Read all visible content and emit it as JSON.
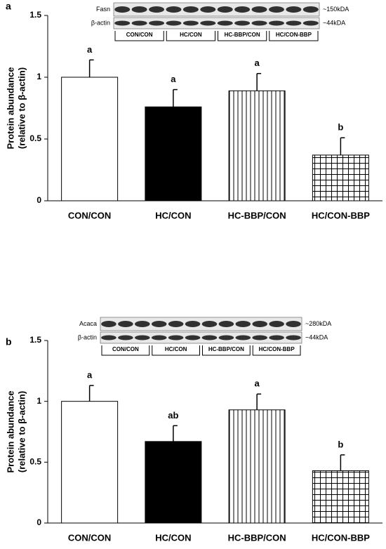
{
  "chart_data": [
    {
      "type": "bar",
      "panel": "a",
      "ylabel": [
        "Protein abundance",
        "(relative to β-actin)"
      ],
      "categories": [
        "CON/CON",
        "HC/CON",
        "HC-BBP/CON",
        "HC/CON-BBP"
      ],
      "values": [
        1.0,
        0.76,
        0.89,
        0.37
      ],
      "errors": [
        0.14,
        0.14,
        0.14,
        0.14
      ],
      "letters": [
        "a",
        "a",
        "a",
        "b"
      ],
      "fills": [
        "white",
        "black",
        "vertical",
        "grid"
      ],
      "ylim": [
        0,
        1.5
      ],
      "yticks": [
        0,
        0.5,
        1,
        1.5
      ],
      "blot": {
        "bands": [
          {
            "name": "Fasn",
            "size": "~150kDA"
          },
          {
            "name": "β-actin",
            "size": "~44kDA"
          }
        ],
        "groups": [
          "CON/CON",
          "HC/CON",
          "HC-BBP/CON",
          "HC/CON-BBP"
        ]
      }
    },
    {
      "type": "bar",
      "panel": "b",
      "ylabel": [
        "Protein abundance",
        "(relative to β-actin)"
      ],
      "categories": [
        "CON/CON",
        "HC/CON",
        "HC-BBP/CON",
        "HC/CON-BBP"
      ],
      "values": [
        1.0,
        0.67,
        0.93,
        0.43
      ],
      "errors": [
        0.13,
        0.13,
        0.13,
        0.13
      ],
      "letters": [
        "a",
        "ab",
        "a",
        "b"
      ],
      "fills": [
        "white",
        "black",
        "vertical",
        "grid"
      ],
      "ylim": [
        0,
        1.5
      ],
      "yticks": [
        0,
        0.5,
        1,
        1.5
      ],
      "blot": {
        "bands": [
          {
            "name": "Acaca",
            "size": "~280kDA"
          },
          {
            "name": "β-actin",
            "size": "~44kDA"
          }
        ],
        "groups": [
          "CON/CON",
          "HC/CON",
          "HC-BBP/CON",
          "HC/CON-BBP"
        ]
      }
    }
  ]
}
